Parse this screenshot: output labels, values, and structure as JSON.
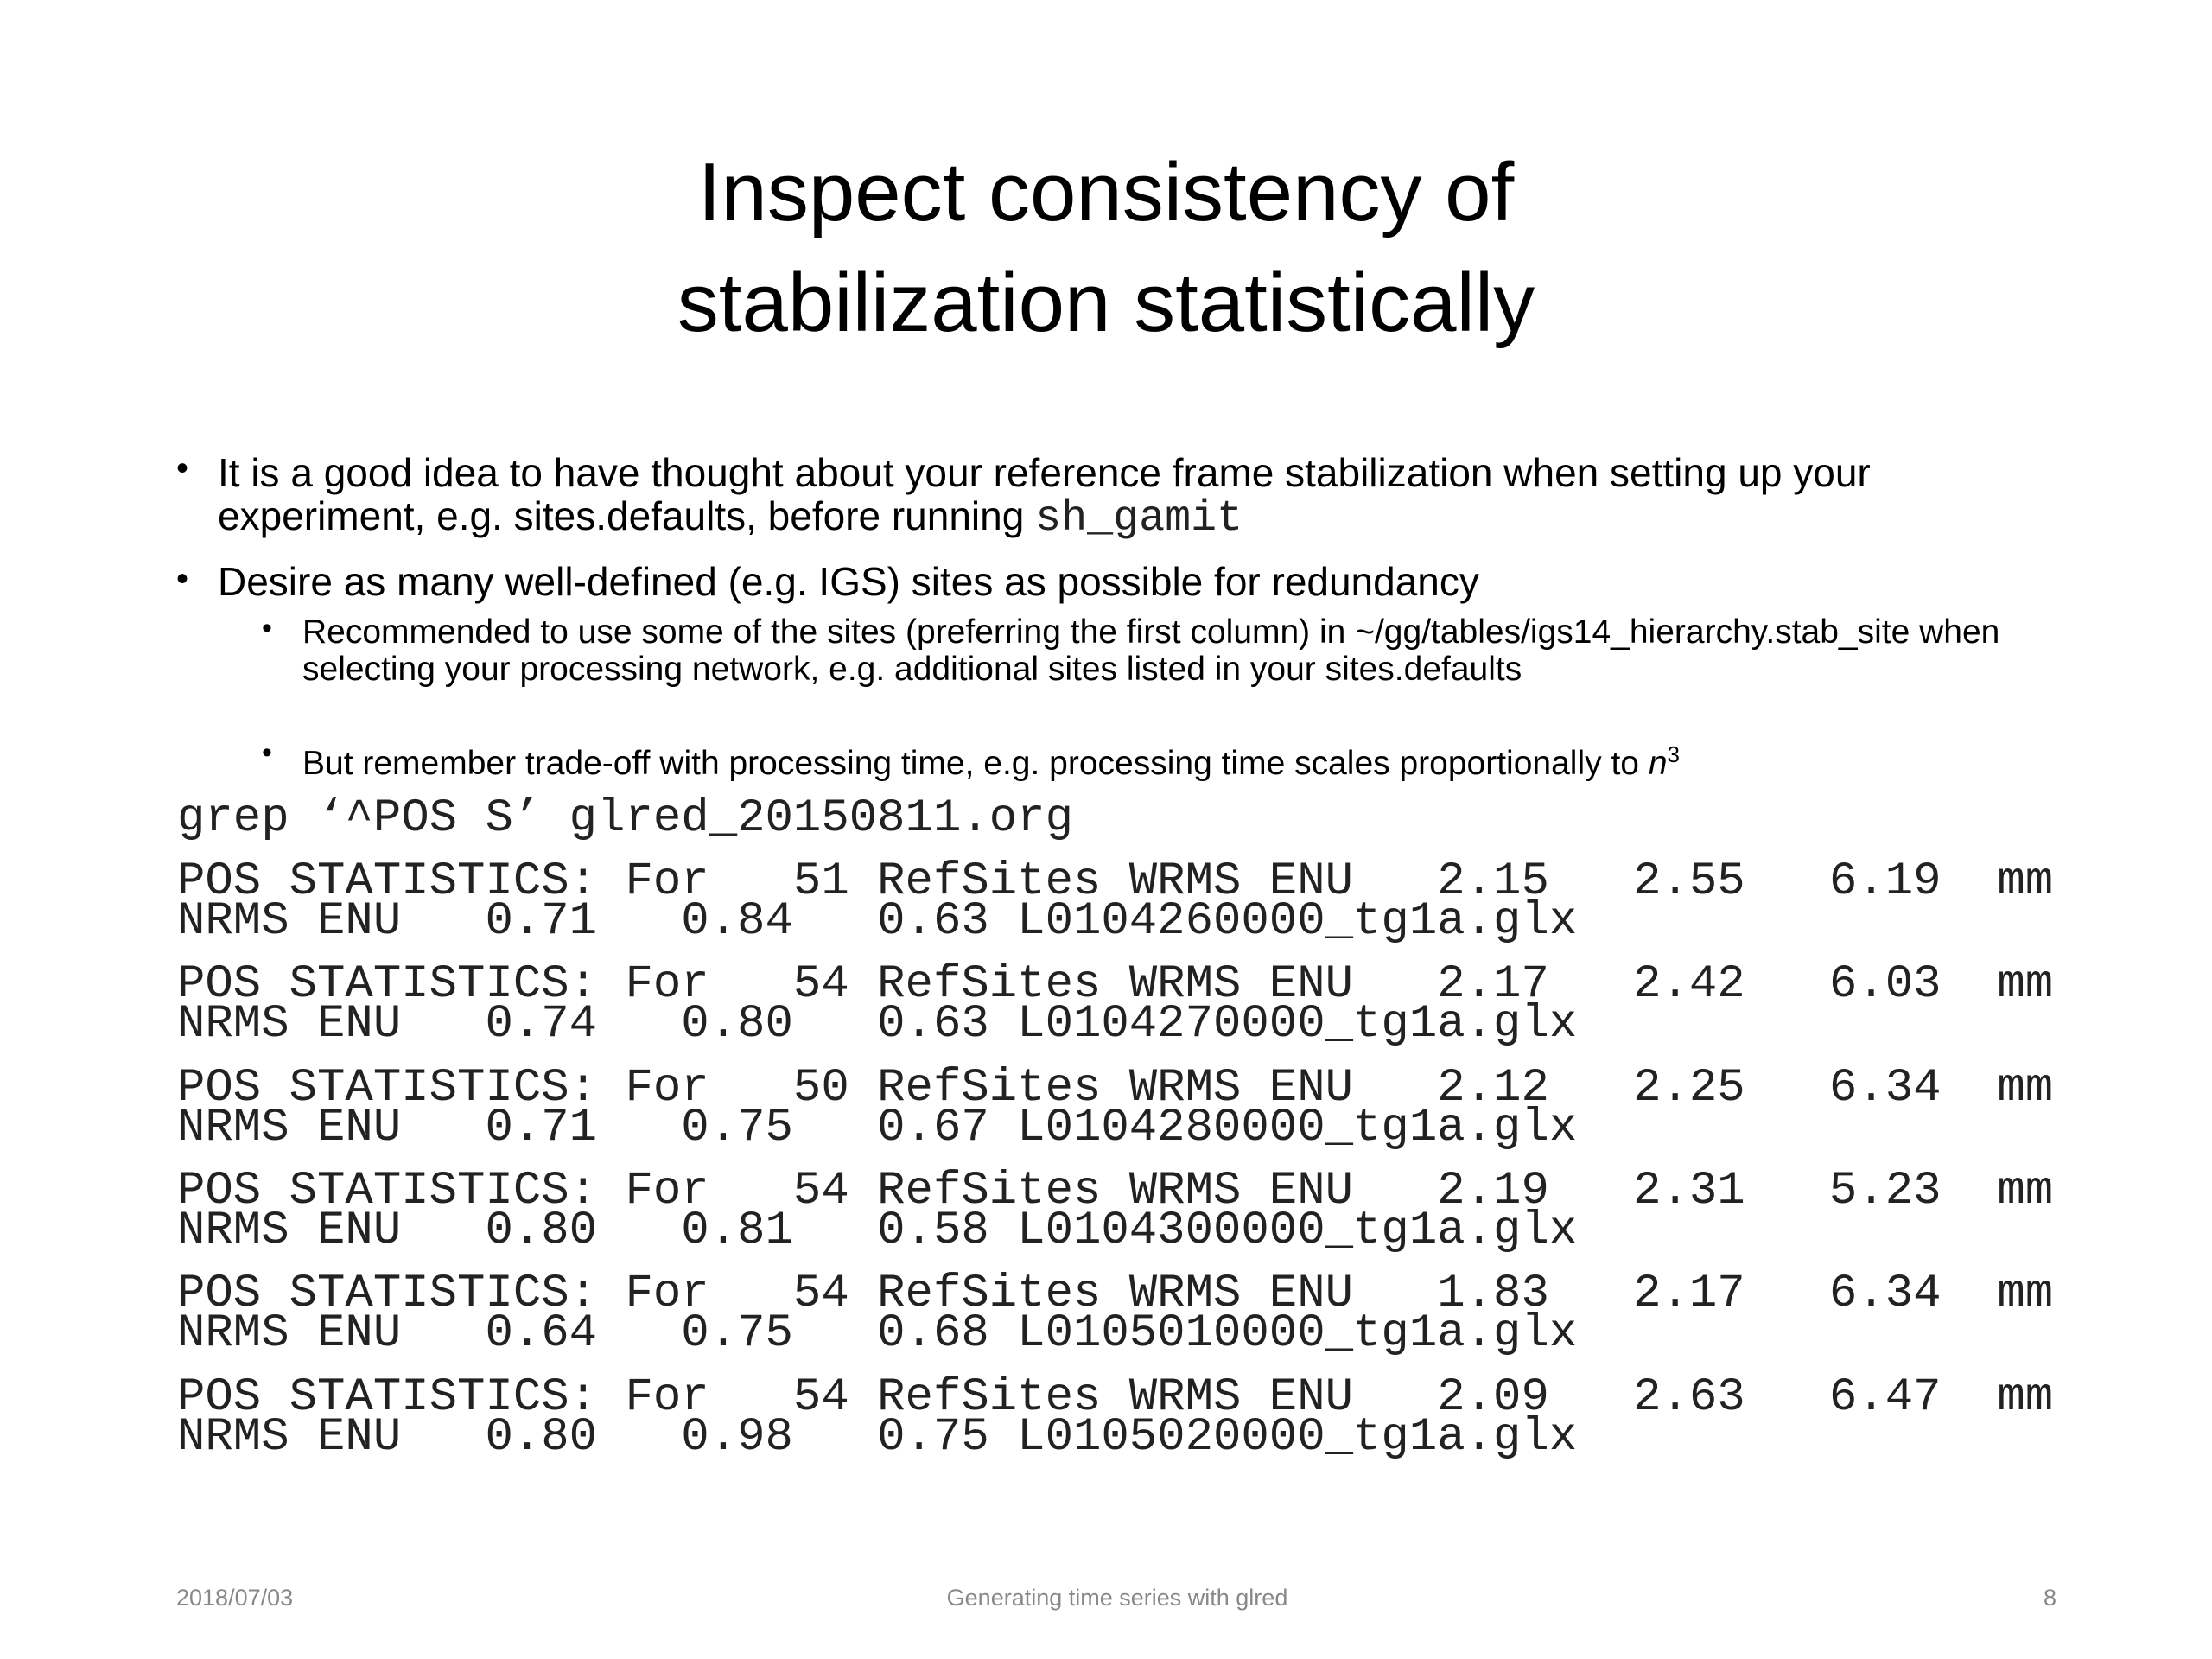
{
  "title": {
    "line1": "Inspect consistency of",
    "line2": "stabilization statistically"
  },
  "bullets": [
    {
      "text": "It is a good idea to have thought about your reference frame stabilization when setting up your experiment, e.g. sites.defaults, before running ",
      "code": "sh_gamit"
    },
    {
      "text": "Desire as many well-defined (e.g. IGS) sites as possible for redundancy",
      "sub": [
        {
          "text": "Recommended to use some of the sites (preferring the first column) in ~/gg/tables/igs14_hierarchy.stab_site when selecting your processing network, e.g. additional sites listed in your sites.defaults"
        },
        {
          "text": "But remember trade-off with processing time, e.g. processing time scales proportionally to ",
          "var": "n",
          "exp": "3"
        }
      ]
    }
  ],
  "command": "grep ‘^POS S’ glred_20150811.org",
  "output": [
    {
      "line1": "POS STATISTICS: For   51 RefSites WRMS ENU   2.15   2.55   6.19  mm",
      "line2": "NRMS ENU   0.71   0.84   0.63 L0104260000_tg1a.glx"
    },
    {
      "line1": "POS STATISTICS: For   54 RefSites WRMS ENU   2.17   2.42   6.03  mm",
      "line2": "NRMS ENU   0.74   0.80   0.63 L0104270000_tg1a.glx"
    },
    {
      "line1": "POS STATISTICS: For   50 RefSites WRMS ENU   2.12   2.25   6.34  mm",
      "line2": "NRMS ENU   0.71   0.75   0.67 L0104280000_tg1a.glx"
    },
    {
      "line1": "POS STATISTICS: For   54 RefSites WRMS ENU   2.19   2.31   5.23  mm",
      "line2": "NRMS ENU   0.80   0.81   0.58 L0104300000_tg1a.glx"
    },
    {
      "line1": "POS STATISTICS: For   54 RefSites WRMS ENU   1.83   2.17   6.34  mm",
      "line2": "NRMS ENU   0.64   0.75   0.68 L0105010000_tg1a.glx"
    },
    {
      "line1": "POS STATISTICS: For   54 RefSites WRMS ENU   2.09   2.63   6.47  mm",
      "line2": "NRMS ENU   0.80   0.98   0.75 L0105020000_tg1a.glx"
    }
  ],
  "footer": {
    "date": "2018/07/03",
    "center": "Generating time series with glred",
    "page": "8"
  }
}
